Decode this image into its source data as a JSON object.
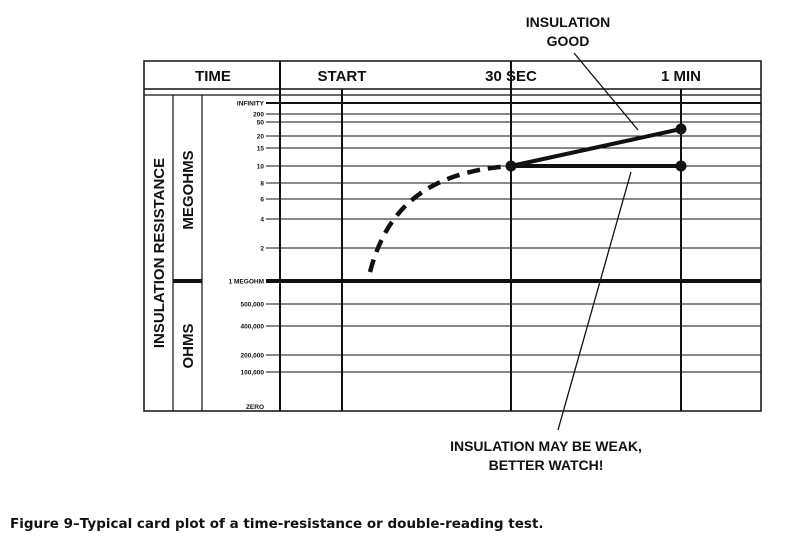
{
  "header": {
    "time_label": "TIME",
    "columns": [
      "START",
      "30 SEC",
      "1 MIN"
    ]
  },
  "side_labels": {
    "insulation_resistance": "INSULATION RESISTANCE",
    "megohms": "MEGOHMS",
    "ohms": "OHMS"
  },
  "scale": {
    "ticks": [
      "INFINITY",
      "200",
      "50",
      "20",
      "15",
      "10",
      "8",
      "6",
      "4",
      "2",
      "1 MEGOHM",
      "500,000",
      "400,000",
      "200,000",
      "100,000",
      "ZERO"
    ]
  },
  "annotations": {
    "good": [
      "INSULATION",
      "GOOD"
    ],
    "weak": [
      "INSULATION MAY BE WEAK,",
      "BETTER WATCH!"
    ]
  },
  "caption": "Figure 9–Typical card plot of a time-resistance or double-reading test."
}
